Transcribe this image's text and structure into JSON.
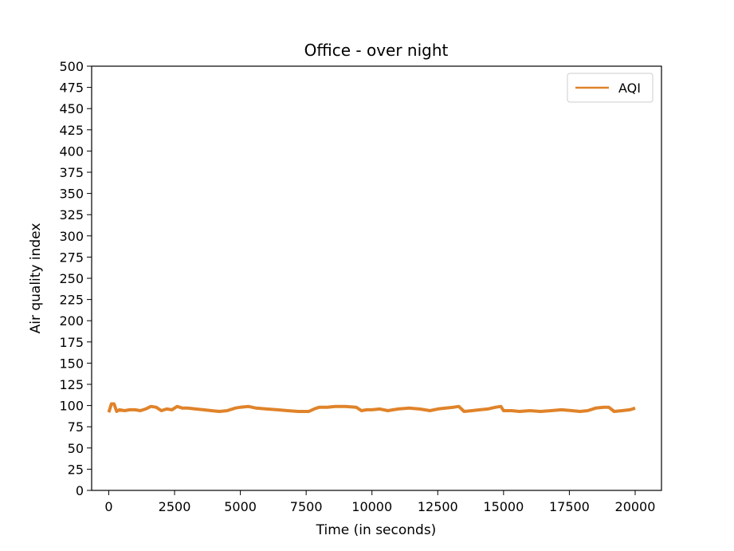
{
  "chart_data": {
    "type": "line",
    "title": "Office - over night",
    "xlabel": "Time (in seconds)",
    "ylabel": "Air quality index",
    "xlim": [
      -650,
      21000
    ],
    "ylim": [
      0,
      500
    ],
    "x_ticks": [
      0,
      2500,
      5000,
      7500,
      10000,
      12500,
      15000,
      17500,
      20000
    ],
    "y_ticks": [
      0,
      25,
      50,
      75,
      100,
      125,
      150,
      175,
      200,
      225,
      250,
      275,
      300,
      325,
      350,
      375,
      400,
      425,
      450,
      475,
      500
    ],
    "grid": false,
    "legend_position": "top-right",
    "series": [
      {
        "name": "AQI",
        "color": "#e0832a",
        "x": [
          0,
          100,
          200,
          300,
          400,
          600,
          800,
          1000,
          1200,
          1400,
          1600,
          1800,
          2000,
          2200,
          2400,
          2600,
          2800,
          3000,
          3300,
          3600,
          3900,
          4200,
          4500,
          4800,
          5000,
          5300,
          5600,
          6000,
          6400,
          6800,
          7200,
          7600,
          7800,
          8000,
          8300,
          8600,
          9000,
          9400,
          9600,
          9800,
          10000,
          10300,
          10600,
          11000,
          11400,
          11800,
          12000,
          12200,
          12500,
          12800,
          13100,
          13300,
          13500,
          13800,
          14100,
          14400,
          14700,
          14900,
          15000,
          15300,
          15600,
          16000,
          16400,
          16800,
          17200,
          17600,
          17900,
          18200,
          18500,
          18800,
          19000,
          19200,
          19500,
          19800,
          20000
        ],
        "y": [
          92,
          102,
          102,
          93,
          95,
          94,
          95,
          95,
          94,
          96,
          99,
          98,
          94,
          96,
          95,
          99,
          97,
          97,
          96,
          95,
          94,
          93,
          94,
          97,
          98,
          99,
          97,
          96,
          95,
          94,
          93,
          93,
          96,
          98,
          98,
          99,
          99,
          98,
          94,
          95,
          95,
          96,
          94,
          96,
          97,
          96,
          95,
          94,
          96,
          97,
          98,
          99,
          93,
          94,
          95,
          96,
          98,
          99,
          94,
          94,
          93,
          94,
          93,
          94,
          95,
          94,
          93,
          94,
          97,
          98,
          98,
          93,
          94,
          95,
          97
        ]
      }
    ]
  }
}
